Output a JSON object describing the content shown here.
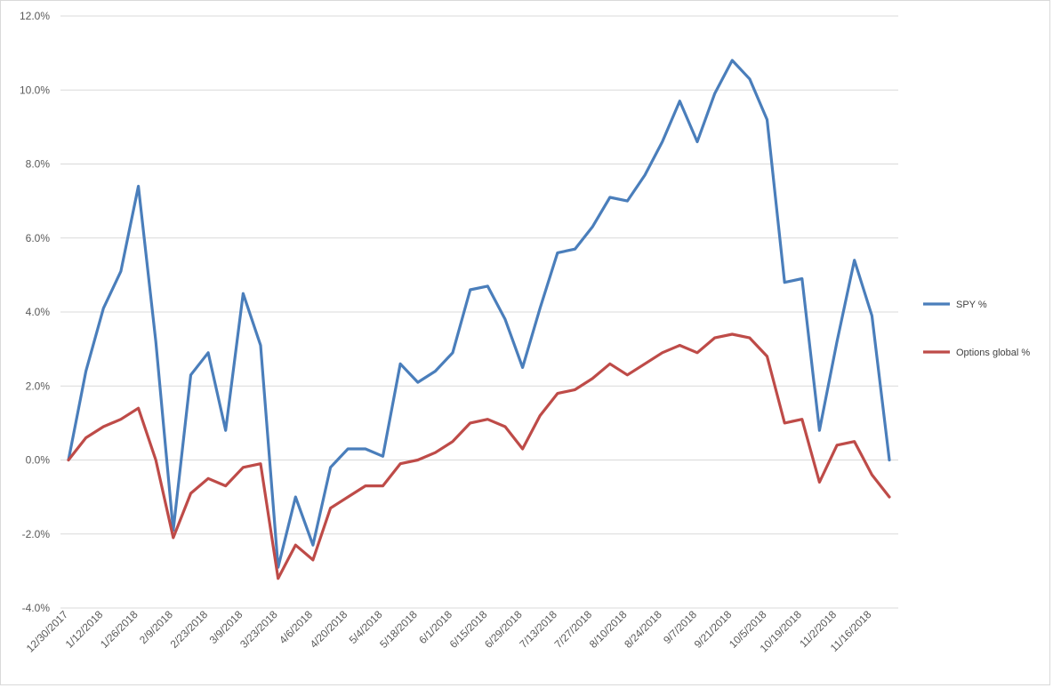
{
  "chart_data": {
    "type": "line",
    "title": "",
    "xlabel": "",
    "ylabel": "",
    "ylim": [
      -4.0,
      12.0
    ],
    "y_ticks": [
      "-4.0%",
      "-2.0%",
      "0.0%",
      "2.0%",
      "4.0%",
      "6.0%",
      "8.0%",
      "10.0%",
      "12.0%"
    ],
    "y_tick_values": [
      -4,
      -2,
      0,
      2,
      4,
      6,
      8,
      10,
      12
    ],
    "grid": "horizontal",
    "legend_position": "right",
    "x_tick_labels": [
      "12/30/2017",
      "1/12/2018",
      "1/26/2018",
      "2/9/2018",
      "2/23/2018",
      "3/9/2018",
      "3/23/2018",
      "4/6/2018",
      "4/20/2018",
      "5/4/2018",
      "5/18/2018",
      "6/1/2018",
      "6/15/2018",
      "6/29/2018",
      "7/13/2018",
      "7/27/2018",
      "8/10/2018",
      "8/24/2018",
      "9/7/2018",
      "9/21/2018",
      "10/5/2018",
      "10/19/2018",
      "11/2/2018",
      "11/16/2018"
    ],
    "series": [
      {
        "name": "SPY %",
        "color": "#4a7ebb",
        "values": [
          0.0,
          2.4,
          4.1,
          5.1,
          7.4,
          3.2,
          -1.9,
          2.3,
          2.9,
          0.8,
          4.5,
          3.1,
          -2.9,
          -1.0,
          -2.3,
          -0.2,
          0.3,
          0.3,
          0.1,
          2.6,
          2.1,
          2.4,
          2.9,
          4.6,
          4.7,
          3.8,
          2.5,
          4.1,
          5.6,
          5.7,
          6.3,
          7.1,
          7.0,
          7.7,
          8.6,
          9.7,
          8.6,
          9.9,
          10.8,
          10.3,
          9.2,
          4.8,
          4.9,
          0.8,
          3.2,
          5.4,
          3.9,
          0.0
        ]
      },
      {
        "name": "Options global %",
        "color": "#be4b48",
        "values": [
          0.0,
          0.6,
          0.9,
          1.1,
          1.4,
          0.0,
          -2.1,
          -0.9,
          -0.5,
          -0.7,
          -0.2,
          -0.1,
          -3.2,
          -2.3,
          -2.7,
          -1.3,
          -1.0,
          -0.7,
          -0.7,
          -0.1,
          0.0,
          0.2,
          0.5,
          1.0,
          1.1,
          0.9,
          0.3,
          1.2,
          1.8,
          1.9,
          2.2,
          2.6,
          2.3,
          2.6,
          2.9,
          3.1,
          2.9,
          3.3,
          3.4,
          3.3,
          2.8,
          1.0,
          1.1,
          -0.6,
          0.4,
          0.5,
          -0.4,
          -1.0
        ]
      }
    ]
  }
}
